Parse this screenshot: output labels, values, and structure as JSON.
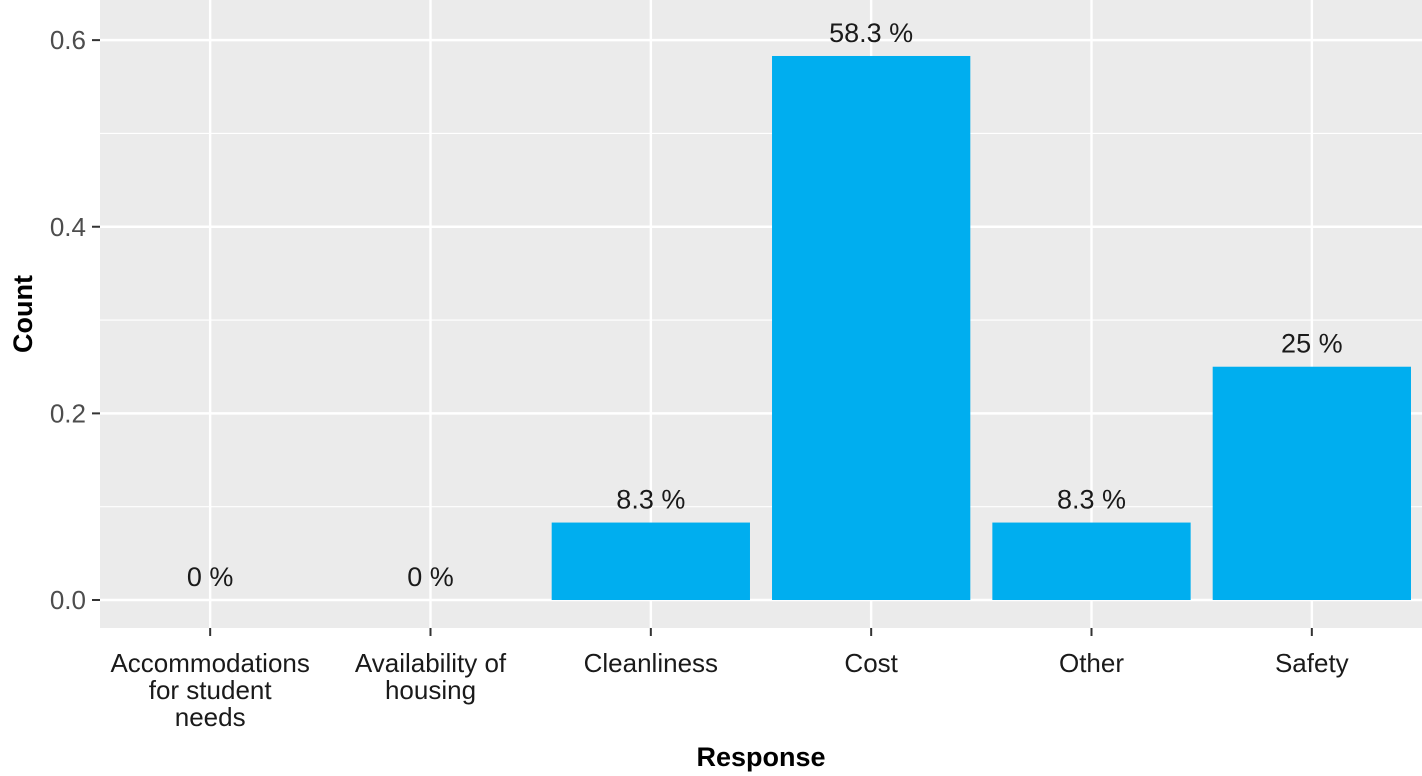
{
  "chart_data": {
    "type": "bar",
    "categories": [
      [
        "Accommodations",
        "for student",
        "needs"
      ],
      [
        "Availability of",
        "housing"
      ],
      [
        "Cleanliness"
      ],
      [
        "Cost"
      ],
      [
        "Other"
      ],
      [
        "Safety"
      ]
    ],
    "values": [
      0,
      0,
      0.083,
      0.583,
      0.083,
      0.25
    ],
    "data_labels": [
      "0 %",
      "0 %",
      "8.3 %",
      "58.3 %",
      "8.3 %",
      "25 %"
    ],
    "title": "",
    "xlabel": "Response",
    "ylabel": "Count",
    "ylim": [
      -0.03,
      0.643
    ],
    "yticks": [
      0.0,
      0.2,
      0.4,
      0.6
    ],
    "ytick_labels": [
      "0.0",
      "0.2",
      "0.4",
      "0.6"
    ],
    "grid": true,
    "legend": "none",
    "colors": {
      "bar": "#00AEEF",
      "panel": "#EBEBEB",
      "grid": "#FFFFFF"
    }
  }
}
